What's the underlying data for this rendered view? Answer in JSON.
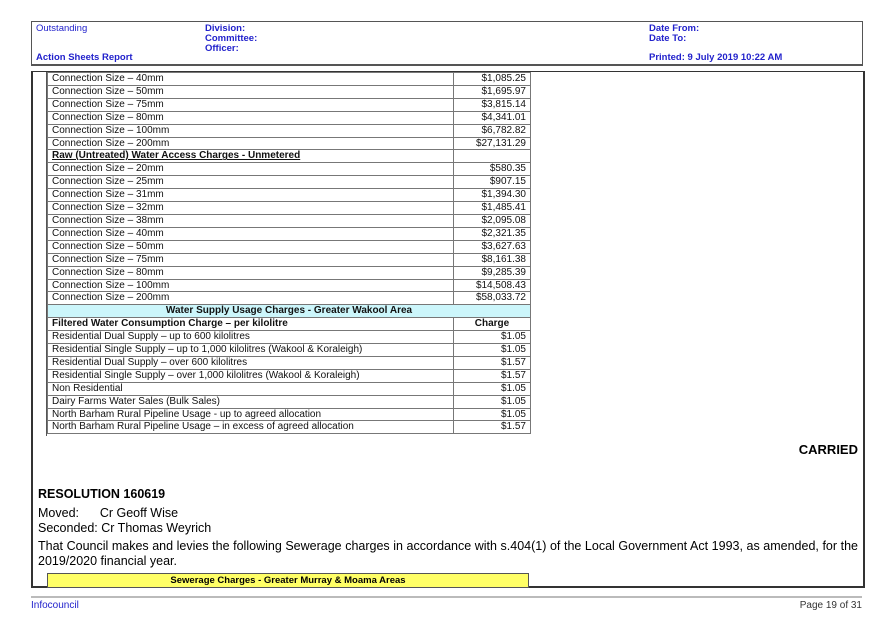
{
  "header": {
    "status": "Outstanding",
    "report": "Action Sheets Report",
    "division": "Division:",
    "committee": "Committee:",
    "officer": "Officer:",
    "date_from": "Date From:",
    "date_to": "Date To:",
    "printed": "Printed: 9 July 2019 10:22 AM"
  },
  "table": {
    "rows_top": [
      [
        "Connection Size – 40mm",
        "$1,085.25"
      ],
      [
        "Connection Size – 50mm",
        "$1,695.97"
      ],
      [
        "Connection Size – 75mm",
        "$3,815.14"
      ],
      [
        "Connection Size – 80mm",
        "$4,341.01"
      ],
      [
        "Connection Size – 100mm",
        "$6,782.82"
      ],
      [
        "Connection Size – 200mm",
        "$27,131.29"
      ]
    ],
    "raw_header": "Raw (Untreated) Water Access Charges - Unmetered",
    "rows_raw": [
      [
        "Connection Size – 20mm",
        "$580.35"
      ],
      [
        "Connection Size – 25mm",
        "$907.15"
      ],
      [
        "Connection Size – 31mm",
        "$1,394.30"
      ],
      [
        "Connection Size – 32mm",
        "$1,485.41"
      ],
      [
        "Connection Size – 38mm",
        "$2,095.08"
      ],
      [
        "Connection Size – 40mm",
        "$2,321.35"
      ],
      [
        "Connection Size – 50mm",
        "$3,627.63"
      ],
      [
        "Connection Size – 75mm",
        "$8,161.38"
      ],
      [
        "Connection Size – 80mm",
        "$9,285.39"
      ],
      [
        "Connection Size – 100mm",
        "$14,508.43"
      ],
      [
        "Connection Size – 200mm",
        "$58,033.72"
      ]
    ],
    "usage_header": "Water Supply Usage Charges - Greater Wakool Area",
    "filtered_header": "Filtered Water Consumption Charge – per kilolitre",
    "charge_header": "Charge",
    "rows_usage": [
      [
        "Residential Dual Supply – up to 600 kilolitres",
        "$1.05"
      ],
      [
        "Residential Single Supply – up to 1,000 kilolitres (Wakool & Koraleigh)",
        "$1.05"
      ],
      [
        "Residential Dual Supply – over 600 kilolitres",
        "$1.57"
      ],
      [
        "Residential Single Supply – over 1,000 kilolitres (Wakool & Koraleigh)",
        "$1.57"
      ],
      [
        "Non Residential",
        "$1.05"
      ],
      [
        "Dairy Farms Water Sales (Bulk Sales)",
        "$1.05"
      ],
      [
        "North Barham Rural Pipeline Usage - up to agreed allocation",
        "$1.05"
      ],
      [
        "North Barham Rural Pipeline Usage – in excess of agreed allocation",
        "$1.57"
      ]
    ]
  },
  "carried": "CARRIED",
  "resolution": {
    "title": "RESOLUTION 160619",
    "moved": "Moved:      Cr Geoff Wise",
    "seconded": "Seconded: Cr Thomas Weyrich",
    "text": "That Council makes and levies the following Sewerage charges in accordance with s.404(1) of the Local Government Act 1993, as amended, for the 2019/2020 financial year."
  },
  "sewerage_header": "Sewerage Charges - Greater Murray & Moama Areas",
  "footer": {
    "brand": "Infocouncil",
    "page": "Page 19 of 31"
  }
}
